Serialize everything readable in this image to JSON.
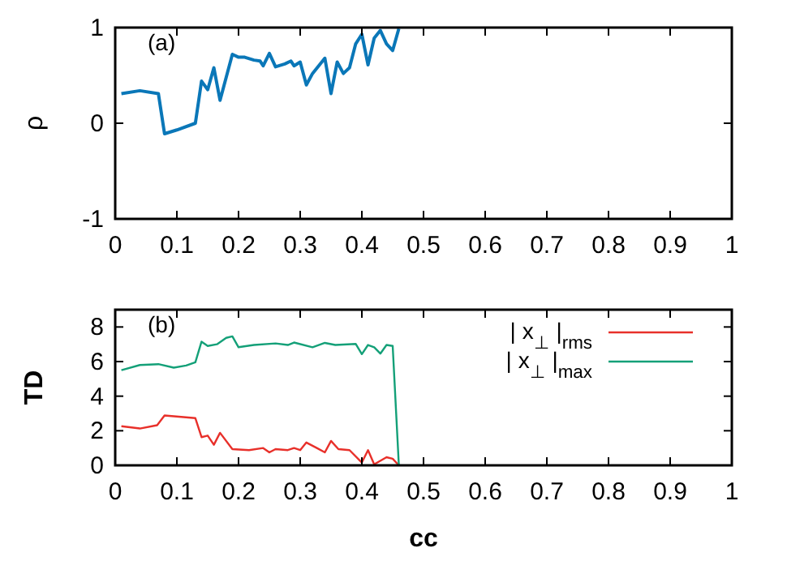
{
  "chart_data": [
    {
      "type": "line",
      "ylabel": "ρ",
      "annotations": [
        "(a)"
      ],
      "xlim": [
        0,
        1
      ],
      "ylim": [
        -1,
        1
      ],
      "xticks": [
        0,
        0.1,
        0.2,
        0.3,
        0.4,
        0.5,
        0.6,
        0.7,
        0.8,
        0.9,
        1
      ],
      "yticks": [
        -1,
        0,
        1
      ],
      "series": [
        {
          "color": "#0a77b8",
          "x": [
            0.01,
            0.04,
            0.07,
            0.08,
            0.1,
            0.13,
            0.14,
            0.15,
            0.16,
            0.17,
            0.19,
            0.2,
            0.21,
            0.225,
            0.235,
            0.24,
            0.25,
            0.26,
            0.275,
            0.285,
            0.29,
            0.3,
            0.31,
            0.32,
            0.34,
            0.35,
            0.36,
            0.37,
            0.38,
            0.39,
            0.4,
            0.41,
            0.42,
            0.43,
            0.44,
            0.45,
            0.46
          ],
          "values": [
            0.31,
            0.34,
            0.31,
            -0.11,
            -0.07,
            0,
            0.44,
            0.35,
            0.58,
            0.24,
            0.72,
            0.69,
            0.69,
            0.66,
            0.65,
            0.6,
            0.73,
            0.59,
            0.62,
            0.65,
            0.6,
            0.64,
            0.4,
            0.52,
            0.68,
            0.31,
            0.64,
            0.52,
            0.58,
            0.83,
            0.93,
            0.61,
            0.89,
            0.97,
            0.83,
            0.76,
            0.99
          ]
        }
      ]
    },
    {
      "type": "line",
      "xlabel": "cc",
      "ylabel": "TD",
      "annotations": [
        "(b)"
      ],
      "legend": "top right",
      "xlim": [
        0,
        1
      ],
      "ylim": [
        0,
        9
      ],
      "xticks": [
        0,
        0.1,
        0.2,
        0.3,
        0.4,
        0.5,
        0.6,
        0.7,
        0.8,
        0.9,
        1
      ],
      "yticks": [
        0,
        2,
        4,
        6,
        8
      ],
      "series": [
        {
          "name": "| x$_{⊥}$ |$_{rms}$",
          "color": "#e8302a",
          "x": [
            0.01,
            0.04,
            0.068,
            0.08,
            0.13,
            0.14,
            0.15,
            0.16,
            0.17,
            0.19,
            0.217,
            0.24,
            0.25,
            0.26,
            0.28,
            0.29,
            0.3,
            0.31,
            0.327,
            0.34,
            0.35,
            0.362,
            0.38,
            0.4,
            0.41,
            0.42,
            0.44,
            0.45,
            0.46
          ],
          "values": [
            2.26,
            2.13,
            2.32,
            2.88,
            2.73,
            1.63,
            1.72,
            1.19,
            1.88,
            0.94,
            0.88,
            1,
            0.75,
            0.94,
            0.88,
            1,
            0.88,
            1.32,
            1,
            0.75,
            1.41,
            0.94,
            0.88,
            0.16,
            0.88,
            0.06,
            0.47,
            0.38,
            0
          ]
        },
        {
          "name": "| x$_{⊥}$ |$_{max}$",
          "color": "#14a078",
          "x": [
            0.01,
            0.04,
            0.07,
            0.095,
            0.115,
            0.13,
            0.14,
            0.15,
            0.165,
            0.18,
            0.19,
            0.2,
            0.225,
            0.26,
            0.28,
            0.29,
            0.32,
            0.34,
            0.357,
            0.39,
            0.4,
            0.41,
            0.42,
            0.43,
            0.44,
            0.45,
            0.46
          ],
          "values": [
            5.5,
            5.8,
            5.85,
            5.65,
            5.77,
            5.96,
            7.15,
            6.9,
            7,
            7.37,
            7.46,
            6.83,
            6.96,
            7.05,
            6.96,
            7.1,
            6.83,
            7.08,
            6.96,
            7.02,
            6.43,
            6.96,
            6.83,
            6.46,
            6.96,
            6.9,
            0
          ]
        }
      ]
    }
  ]
}
